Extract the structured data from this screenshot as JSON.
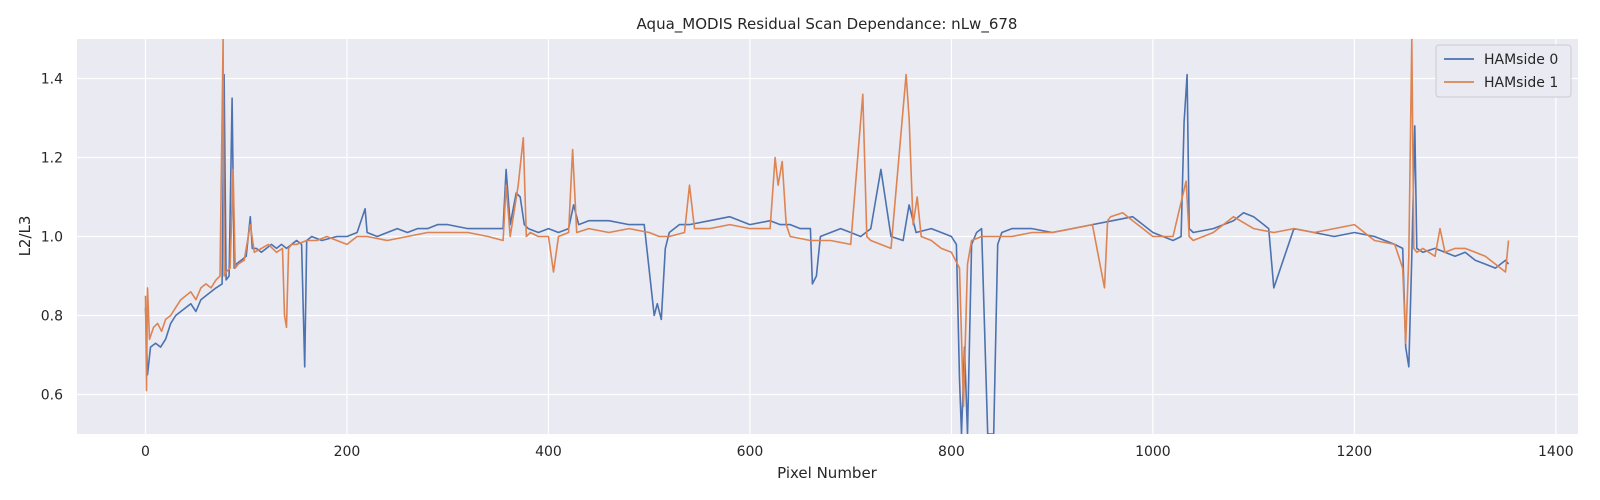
{
  "chart_data": {
    "type": "line",
    "title": "Aqua_MODIS Residual Scan Dependance: nLw_678",
    "xlabel": "Pixel Number",
    "ylabel": "L2/L3",
    "xlim": [
      -68,
      1422
    ],
    "ylim": [
      0.5,
      1.5
    ],
    "xticks": [
      0,
      200,
      400,
      600,
      800,
      1000,
      1200,
      1400
    ],
    "yticks": [
      0.6,
      0.8,
      1.0,
      1.2,
      1.4
    ],
    "grid": true,
    "legend_position": "top-right",
    "background": "#EAEAF2",
    "series": [
      {
        "name": "HAMside 0",
        "color": "#4C72B0",
        "x": [
          0,
          2,
          5,
          10,
          15,
          20,
          25,
          30,
          35,
          40,
          45,
          50,
          55,
          60,
          65,
          70,
          76,
          78,
          80,
          83,
          86,
          88,
          90,
          95,
          100,
          104,
          106,
          110,
          115,
          120,
          125,
          130,
          135,
          140,
          145,
          150,
          155,
          158,
          160,
          165,
          175,
          190,
          200,
          210,
          218,
          220,
          230,
          240,
          250,
          260,
          270,
          280,
          290,
          300,
          320,
          340,
          355,
          358,
          362,
          368,
          372,
          376,
          380,
          390,
          400,
          410,
          420,
          425,
          430,
          440,
          460,
          480,
          495,
          505,
          508,
          512,
          516,
          520,
          530,
          540,
          560,
          580,
          600,
          620,
          630,
          640,
          650,
          660,
          662,
          666,
          670,
          690,
          700,
          710,
          720,
          730,
          740,
          752,
          758,
          765,
          780,
          790,
          800,
          805,
          808,
          810,
          813,
          816,
          820,
          825,
          830,
          836,
          842,
          846,
          850,
          860,
          880,
          900,
          920,
          940,
          960,
          980,
          1000,
          1010,
          1020,
          1028,
          1031,
          1034,
          1036,
          1040,
          1060,
          1080,
          1090,
          1100,
          1110,
          1115,
          1120,
          1140,
          1160,
          1180,
          1200,
          1220,
          1240,
          1248,
          1251,
          1254,
          1257,
          1260,
          1262,
          1268,
          1280,
          1290,
          1300,
          1310,
          1320,
          1330,
          1340,
          1350,
          1353
        ],
        "y": [
          0.82,
          0.65,
          0.72,
          0.73,
          0.72,
          0.74,
          0.78,
          0.8,
          0.81,
          0.82,
          0.83,
          0.81,
          0.84,
          0.85,
          0.86,
          0.87,
          0.88,
          1.41,
          0.89,
          0.9,
          1.35,
          0.92,
          0.93,
          0.94,
          0.95,
          1.05,
          0.97,
          0.97,
          0.96,
          0.97,
          0.98,
          0.97,
          0.98,
          0.97,
          0.98,
          0.99,
          0.98,
          0.67,
          0.99,
          1.0,
          0.99,
          1.0,
          1.0,
          1.01,
          1.07,
          1.01,
          1.0,
          1.01,
          1.02,
          1.01,
          1.02,
          1.02,
          1.03,
          1.03,
          1.02,
          1.02,
          1.02,
          1.17,
          1.03,
          1.11,
          1.1,
          1.03,
          1.02,
          1.01,
          1.02,
          1.01,
          1.02,
          1.08,
          1.03,
          1.04,
          1.04,
          1.03,
          1.03,
          0.8,
          0.83,
          0.79,
          0.97,
          1.01,
          1.03,
          1.03,
          1.04,
          1.05,
          1.03,
          1.04,
          1.03,
          1.03,
          1.02,
          1.02,
          0.88,
          0.9,
          1.0,
          1.02,
          1.01,
          1.0,
          1.02,
          1.17,
          1.0,
          0.99,
          1.08,
          1.01,
          1.02,
          1.01,
          1.0,
          0.98,
          0.64,
          0.5,
          0.72,
          0.5,
          0.98,
          1.01,
          1.02,
          0.5,
          0.5,
          0.98,
          1.01,
          1.02,
          1.02,
          1.01,
          1.02,
          1.03,
          1.04,
          1.05,
          1.01,
          1.0,
          0.99,
          1.0,
          1.29,
          1.41,
          1.02,
          1.01,
          1.02,
          1.04,
          1.06,
          1.05,
          1.03,
          1.02,
          0.87,
          1.02,
          1.01,
          1.0,
          1.01,
          1.0,
          0.98,
          0.97,
          0.72,
          0.67,
          0.95,
          1.28,
          0.97,
          0.96,
          0.97,
          0.96,
          0.95,
          0.96,
          0.94,
          0.93,
          0.92,
          0.94,
          0.93
        ]
      },
      {
        "name": "HAMside 1",
        "color": "#DD8452",
        "x": [
          0,
          1,
          2,
          4,
          8,
          12,
          16,
          20,
          25,
          30,
          35,
          40,
          45,
          50,
          55,
          60,
          65,
          70,
          74,
          77,
          78,
          80,
          84,
          87,
          89,
          92,
          98,
          104,
          108,
          115,
          122,
          130,
          136,
          138,
          140,
          142,
          145,
          150,
          160,
          170,
          180,
          190,
          200,
          210,
          220,
          240,
          260,
          280,
          300,
          320,
          340,
          355,
          358,
          362,
          370,
          375,
          378,
          382,
          390,
          400,
          405,
          410,
          420,
          424,
          428,
          440,
          460,
          480,
          500,
          510,
          520,
          535,
          540,
          545,
          560,
          580,
          600,
          620,
          625,
          628,
          632,
          636,
          640,
          660,
          680,
          700,
          712,
          716,
          720,
          740,
          755,
          758,
          762,
          766,
          770,
          780,
          790,
          800,
          808,
          812,
          816,
          820,
          830,
          840,
          860,
          880,
          900,
          920,
          940,
          952,
          955,
          958,
          970,
          980,
          1000,
          1020,
          1033,
          1036,
          1040,
          1060,
          1080,
          1100,
          1120,
          1140,
          1160,
          1180,
          1200,
          1220,
          1240,
          1248,
          1251,
          1254,
          1257,
          1259,
          1262,
          1268,
          1280,
          1285,
          1290,
          1300,
          1310,
          1320,
          1330,
          1340,
          1350,
          1353
        ],
        "y": [
          0.85,
          0.61,
          0.87,
          0.74,
          0.77,
          0.78,
          0.76,
          0.79,
          0.8,
          0.82,
          0.84,
          0.85,
          0.86,
          0.84,
          0.87,
          0.88,
          0.87,
          0.89,
          0.9,
          1.5,
          0.9,
          0.91,
          0.92,
          1.17,
          0.92,
          0.93,
          0.94,
          1.03,
          0.96,
          0.97,
          0.98,
          0.96,
          0.97,
          0.8,
          0.77,
          0.97,
          0.98,
          0.98,
          0.99,
          0.99,
          1.0,
          0.99,
          0.98,
          1.0,
          1.0,
          0.99,
          1.0,
          1.01,
          1.01,
          1.01,
          1.0,
          0.99,
          1.13,
          1.0,
          1.13,
          1.25,
          1.0,
          1.01,
          1.0,
          1.0,
          0.91,
          1.0,
          1.01,
          1.22,
          1.01,
          1.02,
          1.01,
          1.02,
          1.01,
          1.0,
          1.0,
          1.01,
          1.13,
          1.02,
          1.02,
          1.03,
          1.02,
          1.02,
          1.2,
          1.13,
          1.19,
          1.03,
          1.0,
          0.99,
          0.99,
          0.98,
          1.36,
          1.0,
          0.99,
          0.97,
          1.41,
          1.3,
          1.03,
          1.1,
          1.0,
          0.99,
          0.97,
          0.96,
          0.92,
          0.57,
          0.93,
          0.99,
          1.0,
          1.0,
          1.0,
          1.01,
          1.01,
          1.02,
          1.03,
          0.87,
          1.04,
          1.05,
          1.06,
          1.04,
          1.0,
          1.0,
          1.14,
          1.0,
          0.99,
          1.01,
          1.05,
          1.02,
          1.01,
          1.02,
          1.01,
          1.02,
          1.03,
          0.99,
          0.98,
          0.92,
          0.73,
          0.95,
          1.5,
          0.97,
          0.96,
          0.97,
          0.95,
          1.02,
          0.96,
          0.97,
          0.97,
          0.96,
          0.95,
          0.93,
          0.91,
          0.99
        ]
      }
    ]
  }
}
